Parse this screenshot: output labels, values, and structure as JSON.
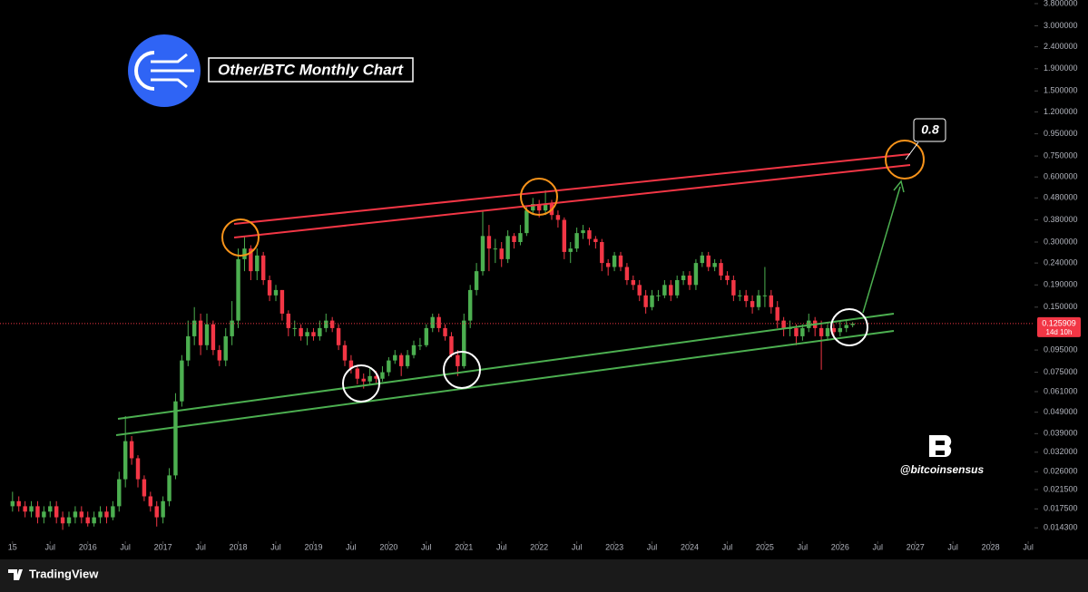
{
  "chart_data": {
    "type": "candlestick",
    "title": "Other/BTC Monthly Chart",
    "annotation": "0.8",
    "watermark": "@bitcoinsensus",
    "up_color": "#4caf50",
    "down_color": "#f23645",
    "log": true,
    "ylim": [
      0.0124,
      3.95
    ],
    "yticks": [
      {
        "value": 3.8,
        "label": "3.800000"
      },
      {
        "value": 3.0,
        "label": "3.000000"
      },
      {
        "value": 2.4,
        "label": "2.400000"
      },
      {
        "value": 1.9,
        "label": "1.900000"
      },
      {
        "value": 1.5,
        "label": "1.500000"
      },
      {
        "value": 1.2,
        "label": "1.200000"
      },
      {
        "value": 0.95,
        "label": "0.950000"
      },
      {
        "value": 0.75,
        "label": "0.750000"
      },
      {
        "value": 0.6,
        "label": "0.600000"
      },
      {
        "value": 0.48,
        "label": "0.480000"
      },
      {
        "value": 0.38,
        "label": "0.380000"
      },
      {
        "value": 0.3,
        "label": "0.300000"
      },
      {
        "value": 0.24,
        "label": "0.240000"
      },
      {
        "value": 0.19,
        "label": "0.190000"
      },
      {
        "value": 0.15,
        "label": "0.150000"
      },
      {
        "value": 0.095,
        "label": "0.095000"
      },
      {
        "value": 0.075,
        "label": "0.075000"
      },
      {
        "value": 0.061,
        "label": "0.061000"
      },
      {
        "value": 0.049,
        "label": "0.049000"
      },
      {
        "value": 0.039,
        "label": "0.039000"
      },
      {
        "value": 0.032,
        "label": "0.032000"
      },
      {
        "value": 0.026,
        "label": "0.026000"
      },
      {
        "value": 0.0215,
        "label": "0.021500"
      },
      {
        "value": 0.0175,
        "label": "0.017500"
      },
      {
        "value": 0.0143,
        "label": "0.014300"
      }
    ],
    "xlim": [
      "2014-11",
      "2028-08"
    ],
    "xticks": [
      {
        "value": "2015-01",
        "label": "15"
      },
      {
        "value": "2015-07",
        "label": "Jul"
      },
      {
        "value": "2016-01",
        "label": "2016"
      },
      {
        "value": "2016-07",
        "label": "Jul"
      },
      {
        "value": "2017-01",
        "label": "2017"
      },
      {
        "value": "2017-07",
        "label": "Jul"
      },
      {
        "value": "2018-01",
        "label": "2018"
      },
      {
        "value": "2018-07",
        "label": "Jul"
      },
      {
        "value": "2019-01",
        "label": "2019"
      },
      {
        "value": "2019-07",
        "label": "Jul"
      },
      {
        "value": "2020-01",
        "label": "2020"
      },
      {
        "value": "2020-07",
        "label": "Jul"
      },
      {
        "value": "2021-01",
        "label": "2021"
      },
      {
        "value": "2021-07",
        "label": "Jul"
      },
      {
        "value": "2022-01",
        "label": "2022"
      },
      {
        "value": "2022-07",
        "label": "Jul"
      },
      {
        "value": "2023-01",
        "label": "2023"
      },
      {
        "value": "2023-07",
        "label": "Jul"
      },
      {
        "value": "2024-01",
        "label": "2024"
      },
      {
        "value": "2024-07",
        "label": "Jul"
      },
      {
        "value": "2025-01",
        "label": "2025"
      },
      {
        "value": "2025-07",
        "label": "Jul"
      },
      {
        "value": "2026-01",
        "label": "2026"
      },
      {
        "value": "2026-07",
        "label": "Jul"
      },
      {
        "value": "2027-01",
        "label": "2027"
      },
      {
        "value": "2027-07",
        "label": "Jul"
      },
      {
        "value": "2028-01",
        "label": "2028"
      },
      {
        "value": "2028-07",
        "label": "Jul"
      }
    ],
    "x": [
      "2015-01",
      "2015-02",
      "2015-03",
      "2015-04",
      "2015-05",
      "2015-06",
      "2015-07",
      "2015-08",
      "2015-09",
      "2015-10",
      "2015-11",
      "2015-12",
      "2016-01",
      "2016-02",
      "2016-03",
      "2016-04",
      "2016-05",
      "2016-06",
      "2016-07",
      "2016-08",
      "2016-09",
      "2016-10",
      "2016-11",
      "2016-12",
      "2017-01",
      "2017-02",
      "2017-03",
      "2017-04",
      "2017-05",
      "2017-06",
      "2017-07",
      "2017-08",
      "2017-09",
      "2017-10",
      "2017-11",
      "2017-12",
      "2018-01",
      "2018-02",
      "2018-03",
      "2018-04",
      "2018-05",
      "2018-06",
      "2018-07",
      "2018-08",
      "2018-09",
      "2018-10",
      "2018-11",
      "2018-12",
      "2019-01",
      "2019-02",
      "2019-03",
      "2019-04",
      "2019-05",
      "2019-06",
      "2019-07",
      "2019-08",
      "2019-09",
      "2019-10",
      "2019-11",
      "2019-12",
      "2020-01",
      "2020-02",
      "2020-03",
      "2020-04",
      "2020-05",
      "2020-06",
      "2020-07",
      "2020-08",
      "2020-09",
      "2020-10",
      "2020-11",
      "2020-12",
      "2021-01",
      "2021-02",
      "2021-03",
      "2021-04",
      "2021-05",
      "2021-06",
      "2021-07",
      "2021-08",
      "2021-09",
      "2021-10",
      "2021-11",
      "2021-12",
      "2022-01",
      "2022-02",
      "2022-03",
      "2022-04",
      "2022-05",
      "2022-06",
      "2022-07",
      "2022-08",
      "2022-09",
      "2022-10",
      "2022-11",
      "2022-12",
      "2023-01",
      "2023-02",
      "2023-03",
      "2023-04",
      "2023-05",
      "2023-06",
      "2023-07",
      "2023-08",
      "2023-09",
      "2023-10",
      "2023-11",
      "2023-12",
      "2024-01",
      "2024-02",
      "2024-03",
      "2024-04",
      "2024-05",
      "2024-06",
      "2024-07",
      "2024-08",
      "2024-09",
      "2024-10",
      "2024-11",
      "2024-12",
      "2025-01",
      "2025-02",
      "2025-03",
      "2025-04",
      "2025-05",
      "2025-06",
      "2025-07",
      "2025-08",
      "2025-09",
      "2025-10",
      "2025-11",
      "2025-12",
      "2026-01",
      "2026-02",
      "2026-03"
    ],
    "open": [
      0.018,
      0.019,
      0.018,
      0.017,
      0.018,
      0.016,
      0.017,
      0.018,
      0.016,
      0.015,
      0.016,
      0.017,
      0.016,
      0.015,
      0.016,
      0.017,
      0.016,
      0.018,
      0.024,
      0.036,
      0.03,
      0.024,
      0.02,
      0.018,
      0.016,
      0.019,
      0.025,
      0.055,
      0.085,
      0.11,
      0.13,
      0.1,
      0.125,
      0.095,
      0.085,
      0.11,
      0.13,
      0.25,
      0.28,
      0.22,
      0.26,
      0.2,
      0.17,
      0.18,
      0.14,
      0.12,
      0.12,
      0.11,
      0.115,
      0.11,
      0.12,
      0.13,
      0.12,
      0.1,
      0.085,
      0.078,
      0.07,
      0.068,
      0.072,
      0.07,
      0.075,
      0.085,
      0.09,
      0.08,
      0.09,
      0.1,
      0.1,
      0.12,
      0.135,
      0.12,
      0.11,
      0.09,
      0.08,
      0.13,
      0.18,
      0.22,
      0.32,
      0.28,
      0.28,
      0.25,
      0.32,
      0.3,
      0.33,
      0.42,
      0.45,
      0.42,
      0.45,
      0.4,
      0.38,
      0.27,
      0.28,
      0.33,
      0.34,
      0.31,
      0.3,
      0.24,
      0.23,
      0.26,
      0.23,
      0.2,
      0.19,
      0.17,
      0.15,
      0.17,
      0.17,
      0.19,
      0.17,
      0.2,
      0.21,
      0.19,
      0.24,
      0.26,
      0.23,
      0.24,
      0.21,
      0.2,
      0.17,
      0.17,
      0.16,
      0.15,
      0.17,
      0.17,
      0.15,
      0.13,
      0.12,
      0.12,
      0.11,
      0.12,
      0.13,
      0.12,
      0.11,
      0.12,
      0.115,
      0.12,
      0.124
    ],
    "high": [
      0.021,
      0.02,
      0.019,
      0.019,
      0.019,
      0.018,
      0.019,
      0.019,
      0.017,
      0.017,
      0.018,
      0.018,
      0.017,
      0.017,
      0.018,
      0.018,
      0.019,
      0.026,
      0.047,
      0.038,
      0.031,
      0.025,
      0.021,
      0.019,
      0.02,
      0.027,
      0.06,
      0.09,
      0.13,
      0.15,
      0.14,
      0.14,
      0.13,
      0.1,
      0.12,
      0.16,
      0.28,
      0.32,
      0.29,
      0.28,
      0.27,
      0.21,
      0.19,
      0.18,
      0.145,
      0.13,
      0.125,
      0.12,
      0.12,
      0.13,
      0.14,
      0.135,
      0.125,
      0.105,
      0.09,
      0.08,
      0.074,
      0.078,
      0.076,
      0.08,
      0.088,
      0.095,
      0.092,
      0.095,
      0.105,
      0.108,
      0.125,
      0.14,
      0.14,
      0.125,
      0.115,
      0.095,
      0.14,
      0.19,
      0.24,
      0.42,
      0.36,
      0.31,
      0.3,
      0.34,
      0.33,
      0.36,
      0.44,
      0.48,
      0.47,
      0.52,
      0.47,
      0.42,
      0.39,
      0.3,
      0.35,
      0.36,
      0.35,
      0.32,
      0.31,
      0.25,
      0.27,
      0.27,
      0.24,
      0.21,
      0.2,
      0.18,
      0.18,
      0.18,
      0.2,
      0.2,
      0.21,
      0.22,
      0.22,
      0.25,
      0.27,
      0.27,
      0.25,
      0.25,
      0.22,
      0.21,
      0.18,
      0.18,
      0.17,
      0.18,
      0.23,
      0.18,
      0.16,
      0.135,
      0.13,
      0.125,
      0.125,
      0.14,
      0.135,
      0.13,
      0.125,
      0.125,
      0.13,
      0.13,
      0.128
    ],
    "low": [
      0.017,
      0.017,
      0.016,
      0.016,
      0.015,
      0.015,
      0.016,
      0.015,
      0.014,
      0.0145,
      0.015,
      0.015,
      0.0145,
      0.0145,
      0.015,
      0.015,
      0.0155,
      0.017,
      0.022,
      0.028,
      0.022,
      0.019,
      0.017,
      0.0145,
      0.015,
      0.018,
      0.024,
      0.052,
      0.08,
      0.1,
      0.09,
      0.095,
      0.09,
      0.08,
      0.08,
      0.1,
      0.12,
      0.22,
      0.2,
      0.2,
      0.19,
      0.16,
      0.16,
      0.13,
      0.11,
      0.11,
      0.105,
      0.1,
      0.105,
      0.105,
      0.115,
      0.115,
      0.095,
      0.08,
      0.074,
      0.066,
      0.063,
      0.066,
      0.067,
      0.068,
      0.072,
      0.082,
      0.072,
      0.078,
      0.087,
      0.095,
      0.098,
      0.115,
      0.115,
      0.105,
      0.088,
      0.072,
      0.078,
      0.12,
      0.17,
      0.21,
      0.22,
      0.24,
      0.23,
      0.24,
      0.28,
      0.29,
      0.32,
      0.4,
      0.39,
      0.4,
      0.38,
      0.35,
      0.25,
      0.24,
      0.27,
      0.31,
      0.29,
      0.28,
      0.22,
      0.21,
      0.22,
      0.22,
      0.19,
      0.18,
      0.16,
      0.14,
      0.145,
      0.16,
      0.165,
      0.16,
      0.165,
      0.19,
      0.18,
      0.18,
      0.23,
      0.22,
      0.22,
      0.2,
      0.19,
      0.16,
      0.16,
      0.15,
      0.14,
      0.145,
      0.15,
      0.14,
      0.12,
      0.11,
      0.11,
      0.1,
      0.105,
      0.115,
      0.11,
      0.077,
      0.105,
      0.108,
      0.11,
      0.115,
      0.121
    ],
    "close": [
      0.019,
      0.018,
      0.017,
      0.018,
      0.016,
      0.017,
      0.018,
      0.016,
      0.015,
      0.016,
      0.017,
      0.016,
      0.015,
      0.016,
      0.017,
      0.016,
      0.018,
      0.024,
      0.036,
      0.03,
      0.024,
      0.02,
      0.018,
      0.016,
      0.019,
      0.025,
      0.055,
      0.085,
      0.11,
      0.13,
      0.1,
      0.125,
      0.095,
      0.085,
      0.11,
      0.13,
      0.25,
      0.28,
      0.22,
      0.26,
      0.2,
      0.17,
      0.18,
      0.14,
      0.12,
      0.12,
      0.11,
      0.115,
      0.11,
      0.12,
      0.13,
      0.12,
      0.1,
      0.085,
      0.078,
      0.07,
      0.068,
      0.072,
      0.07,
      0.075,
      0.085,
      0.09,
      0.08,
      0.09,
      0.1,
      0.1,
      0.12,
      0.135,
      0.12,
      0.11,
      0.09,
      0.08,
      0.13,
      0.18,
      0.22,
      0.32,
      0.28,
      0.28,
      0.25,
      0.32,
      0.3,
      0.33,
      0.42,
      0.45,
      0.42,
      0.45,
      0.4,
      0.38,
      0.27,
      0.28,
      0.33,
      0.34,
      0.31,
      0.3,
      0.24,
      0.23,
      0.26,
      0.23,
      0.2,
      0.19,
      0.17,
      0.15,
      0.17,
      0.17,
      0.19,
      0.17,
      0.2,
      0.21,
      0.19,
      0.24,
      0.26,
      0.23,
      0.24,
      0.21,
      0.2,
      0.17,
      0.17,
      0.16,
      0.15,
      0.17,
      0.17,
      0.15,
      0.13,
      0.12,
      0.12,
      0.11,
      0.12,
      0.13,
      0.12,
      0.11,
      0.12,
      0.115,
      0.12,
      0.124,
      0.125909
    ],
    "last_price": 0.125909,
    "countdown": "14d 10h"
  },
  "footer": {
    "brand": "TradingView"
  }
}
